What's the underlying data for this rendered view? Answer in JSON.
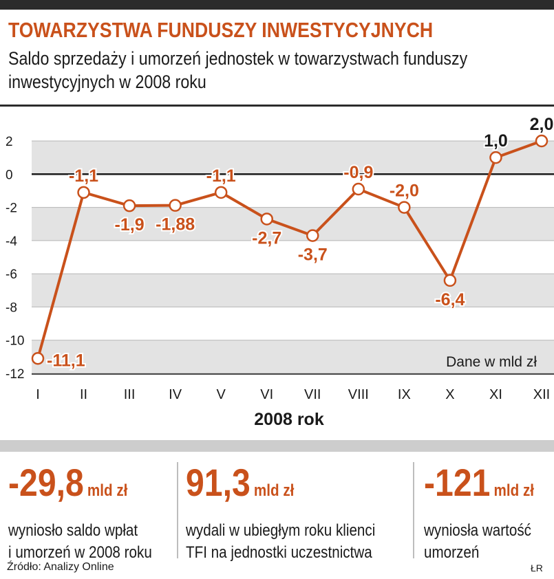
{
  "header": {
    "title": "TOWARZYSTWA FUNDUSZY INWESTYCYJNYCH",
    "subtitle_line1": "Saldo sprzedaży i umorzeń jednostek w towarzystwach funduszy",
    "subtitle_line2": "inwestycyjnych w 2008 roku"
  },
  "chart_data": {
    "type": "line",
    "title": "Saldo sprzedaży i umorzeń jednostek w towarzystwach funduszy inwestycyjnych w 2008 roku",
    "categories": [
      "I",
      "II",
      "III",
      "IV",
      "V",
      "VI",
      "VII",
      "VIII",
      "IX",
      "X",
      "XI",
      "XII"
    ],
    "values": [
      -11.1,
      -1.1,
      -1.9,
      -1.88,
      -1.1,
      -2.7,
      -3.7,
      -0.9,
      -2.0,
      -6.4,
      1.0,
      2.0
    ],
    "value_labels": [
      "-11,1",
      "-1,1",
      "-1,9",
      "-1,88",
      "-1,1",
      "-2,7",
      "-3,7",
      "-0,9",
      "-2,0",
      "-6,4",
      "1,0",
      "2,0"
    ],
    "label_position": [
      "right",
      "above",
      "below",
      "below",
      "above",
      "below",
      "below",
      "above",
      "above",
      "below",
      "above",
      "above"
    ],
    "ylim": [
      -12,
      2
    ],
    "yticks": [
      2,
      0,
      -2,
      -4,
      -6,
      -8,
      -10,
      -12
    ],
    "xlabel": "2008 rok",
    "ylabel": "",
    "note": "Dane w mld zł",
    "line_color": "#c9511b",
    "band_color": "#e3e3e3",
    "grid": true
  },
  "stats": [
    {
      "value": "-29,8",
      "unit": "mld zł",
      "line1": "wyniosło saldo wpłat",
      "line2": "i umorzeń w 2008 roku"
    },
    {
      "value": "91,3",
      "unit": "mld zł",
      "line1": "wydali w ubiegłym roku klienci",
      "line2": "TFI na jednostki uczestnictwa"
    },
    {
      "value": "-121",
      "unit": "mld zł",
      "line1": "wyniosła wartość",
      "line2": "umorzeń"
    }
  ],
  "footer": {
    "source": "Źródło: Analizy Online",
    "author": "ŁR"
  },
  "colors": {
    "accent": "#c9511b",
    "text": "#1a1a1a"
  }
}
